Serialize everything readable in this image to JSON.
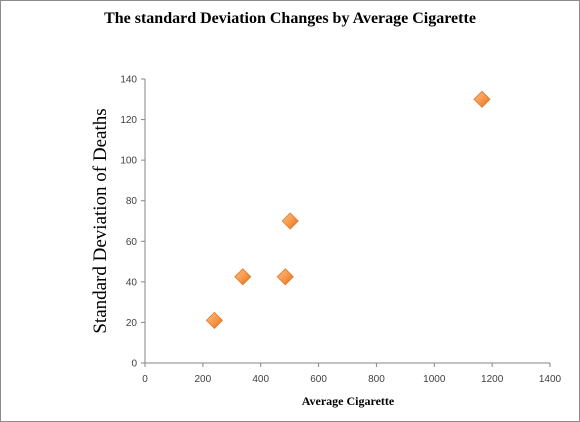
{
  "chart_data": {
    "type": "scatter",
    "title": "The standard Deviation Changes by Average Cigarette",
    "xlabel": "Average Cigarette",
    "ylabel": "Standard  Deviation  of Deaths",
    "xlim": [
      0,
      1400
    ],
    "ylim": [
      0,
      140
    ],
    "xticks": [
      0,
      200,
      400,
      600,
      800,
      1000,
      1200,
      1400
    ],
    "yticks": [
      0,
      20,
      40,
      60,
      80,
      100,
      120,
      140
    ],
    "grid": false,
    "legend": "none",
    "marker": "diamond",
    "marker_color": "#F79646",
    "points": [
      {
        "x": 240,
        "y": 21
      },
      {
        "x": 338,
        "y": 42.5
      },
      {
        "x": 485,
        "y": 42.5
      },
      {
        "x": 502,
        "y": 70
      },
      {
        "x": 1165,
        "y": 130
      }
    ]
  }
}
